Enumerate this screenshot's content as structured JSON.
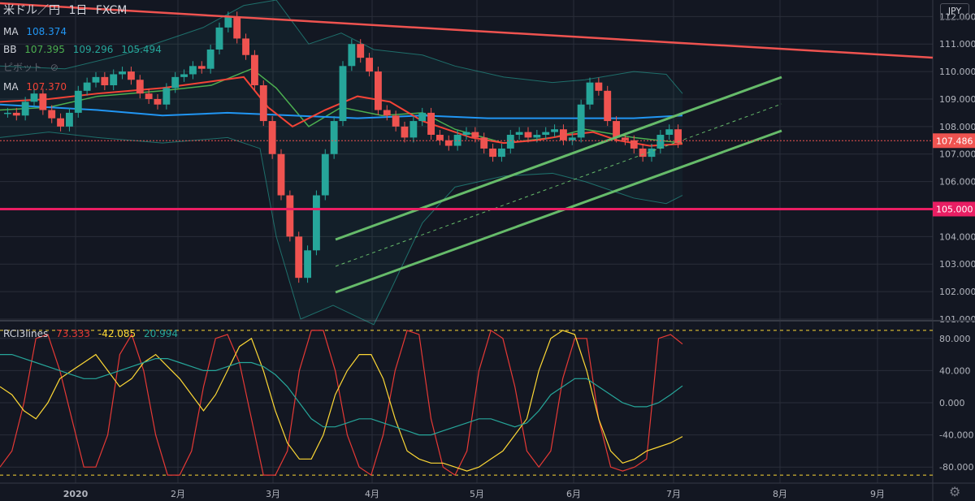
{
  "header": {
    "symbol": "米ドル／円",
    "interval": "1日",
    "source": "FXCM"
  },
  "currency_label": "JPY",
  "indicators": {
    "ma1": {
      "name": "MA",
      "value": "108.374",
      "color": "#2196f3"
    },
    "bb": {
      "name": "BB",
      "basis": "107.395",
      "upper": "109.296",
      "lower": "105.494",
      "color": "#4caf50"
    },
    "pivot": {
      "name": "ピボット"
    },
    "ma2": {
      "name": "MA",
      "value": "107.370",
      "color": "#f44336"
    },
    "rci": {
      "name": "RCI3lines",
      "short": "73.333",
      "mid": "-42.085",
      "long": "20.994",
      "colors": [
        "#e53935",
        "#fdd835",
        "#26a69a"
      ]
    }
  },
  "chart_data": [
    {
      "type": "line",
      "title": "米ドル／円 1日 FXCM",
      "y_range": [
        101.0,
        112.6
      ],
      "y_ticks": [
        "112.000",
        "111.000",
        "110.000",
        "109.000",
        "108.000",
        "107.000",
        "106.000",
        "105.000",
        "104.000",
        "103.000",
        "102.000",
        "101.000"
      ],
      "x_tick_labels": [
        "2020",
        "2月",
        "3月",
        "4月",
        "5月",
        "6月",
        "7月",
        "8月",
        "9月"
      ],
      "last_price": "107.486",
      "horizontal_line": {
        "value": "105.000",
        "color": "#e91e63"
      },
      "series": [
        {
          "name": "MA",
          "color": "#2196f3",
          "points": [
            [
              0,
              108.8
            ],
            [
              60,
              108.7
            ],
            [
              120,
              108.6
            ],
            [
              200,
              108.4
            ],
            [
              280,
              108.5
            ],
            [
              360,
              108.4
            ],
            [
              440,
              108.3
            ],
            [
              520,
              108.4
            ],
            [
              600,
              108.3
            ],
            [
              700,
              108.3
            ],
            [
              780,
              108.3
            ],
            [
              840,
              108.4
            ]
          ]
        },
        {
          "name": "MA",
          "color": "#f44336",
          "points": [
            [
              0,
              108.9
            ],
            [
              60,
              109.0
            ],
            [
              120,
              109.2
            ],
            [
              200,
              109.4
            ],
            [
              250,
              109.6
            ],
            [
              300,
              109.8
            ],
            [
              330,
              108.7
            ],
            [
              360,
              108.0
            ],
            [
              400,
              108.6
            ],
            [
              440,
              109.1
            ],
            [
              480,
              108.9
            ],
            [
              520,
              108.2
            ],
            [
              580,
              107.6
            ],
            [
              620,
              107.4
            ],
            [
              660,
              107.5
            ],
            [
              700,
              107.7
            ],
            [
              730,
              107.8
            ],
            [
              760,
              107.5
            ],
            [
              800,
              107.3
            ],
            [
              840,
              107.37
            ]
          ]
        }
      ]
    },
    {
      "type": "line",
      "title": "RCI3lines",
      "y_range": [
        -100,
        100
      ],
      "y_ticks": [
        "80.000",
        "40.000",
        "0.000",
        "-40.000",
        "-80.000"
      ],
      "levels": [
        90,
        -90
      ],
      "series": [
        {
          "name": "RCI short",
          "color": "#e53935",
          "values": [
            -80,
            -60,
            0,
            80,
            85,
            40,
            -20,
            -80,
            -80,
            -40,
            60,
            85,
            40,
            -40,
            -90,
            -90,
            -60,
            20,
            80,
            85,
            50,
            -20,
            -90,
            -90,
            -60,
            40,
            90,
            90,
            40,
            -40,
            -80,
            -90,
            -40,
            40,
            90,
            85,
            -20,
            -80,
            -90,
            -60,
            40,
            90,
            80,
            20,
            -60,
            -80,
            -60,
            30,
            80,
            80,
            -20,
            -80,
            -85,
            -80,
            -70,
            80,
            85,
            73
          ]
        },
        {
          "name": "RCI mid",
          "color": "#fdd835",
          "values": [
            20,
            10,
            -10,
            -20,
            0,
            30,
            40,
            50,
            60,
            40,
            20,
            30,
            50,
            60,
            45,
            30,
            10,
            -10,
            10,
            40,
            70,
            80,
            40,
            -10,
            -50,
            -70,
            -70,
            -40,
            10,
            40,
            60,
            60,
            30,
            -20,
            -60,
            -70,
            -75,
            -75,
            -80,
            -85,
            -80,
            -70,
            -60,
            -40,
            -20,
            40,
            80,
            90,
            85,
            40,
            -20,
            -60,
            -75,
            -70,
            -60,
            -55,
            -50,
            -42
          ]
        },
        {
          "name": "RCI long",
          "color": "#26a69a",
          "values": [
            60,
            60,
            55,
            50,
            45,
            40,
            35,
            30,
            30,
            35,
            40,
            45,
            50,
            55,
            55,
            50,
            45,
            40,
            40,
            45,
            50,
            50,
            45,
            35,
            20,
            0,
            -20,
            -30,
            -30,
            -25,
            -20,
            -20,
            -25,
            -30,
            -35,
            -40,
            -40,
            -35,
            -30,
            -25,
            -20,
            -20,
            -25,
            -30,
            -25,
            -10,
            10,
            20,
            30,
            30,
            20,
            10,
            0,
            -5,
            -5,
            0,
            10,
            21
          ]
        }
      ]
    }
  ]
}
